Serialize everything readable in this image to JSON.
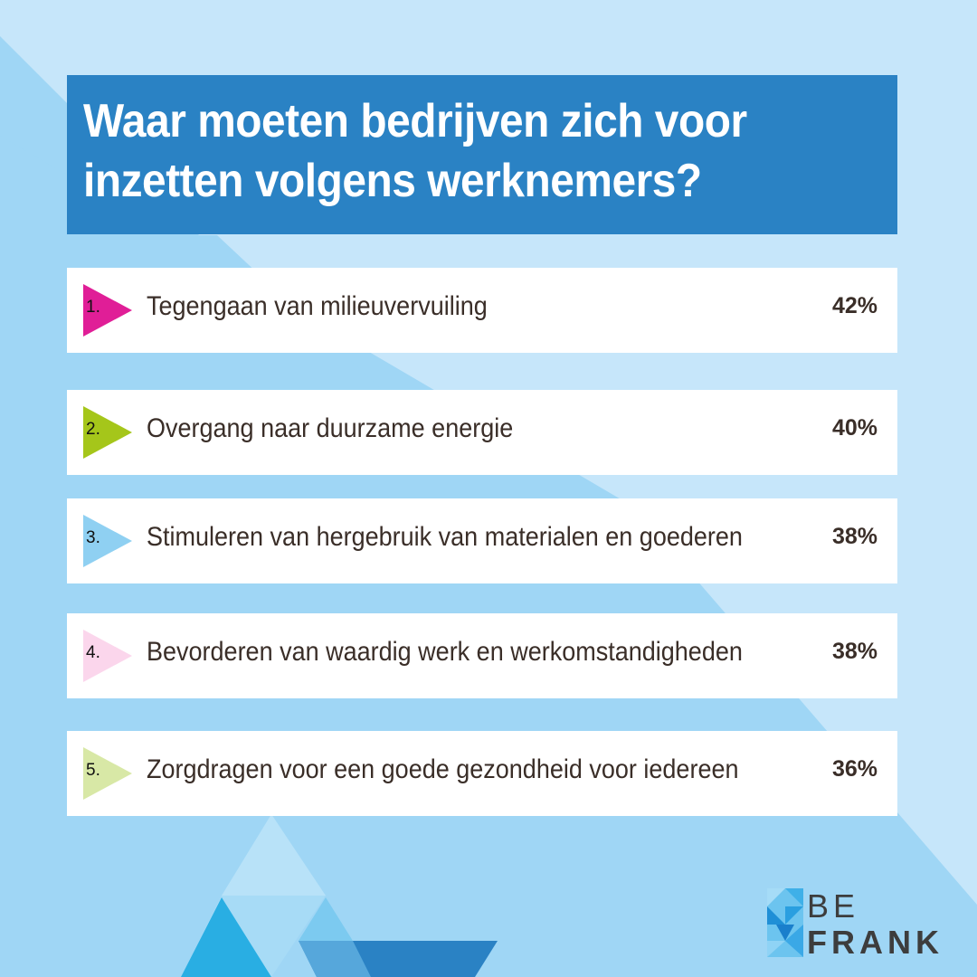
{
  "title": "Waar moeten bedrijven zich voor inzetten volgens werknemers?",
  "items": [
    {
      "rank": "1.",
      "label": "Tegengaan van milieuvervuiling",
      "percent": "42%",
      "color": "#e01e97"
    },
    {
      "rank": "2.",
      "label": "Overgang naar duurzame energie",
      "percent": "40%",
      "color": "#a5c61a"
    },
    {
      "rank": "3.",
      "label": "Stimuleren van hergebruik van materialen en goederen",
      "percent": "38%",
      "color": "#8fd0f2"
    },
    {
      "rank": "4.",
      "label": "Bevorderen van waardig werk en werkomstandigheden",
      "percent": "38%",
      "color": "#fbd6ec"
    },
    {
      "rank": "5.",
      "label": "Zorgdragen voor een goede gezondheid voor iedereen",
      "percent": "36%",
      "color": "#d8e8a6"
    }
  ],
  "logo": {
    "line1": "BE",
    "line2": "FRANK"
  },
  "colors": {
    "background": "#9fd6f5",
    "background_light": "#c6e6fa",
    "title_box": "#2a82c4"
  }
}
